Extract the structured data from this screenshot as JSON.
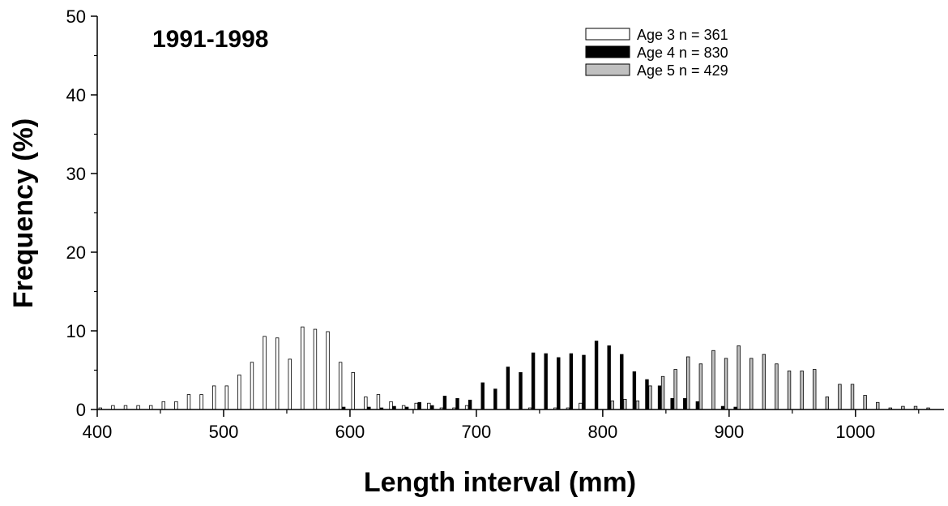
{
  "chart_data": {
    "type": "bar",
    "title": "",
    "annotation": "1991-1998",
    "xlabel": "Length interval (mm)",
    "ylabel": "Frequency (%)",
    "xlim": [
      400,
      1070
    ],
    "ylim": [
      0,
      50
    ],
    "xticks": [
      "400",
      "500",
      "600",
      "700",
      "800",
      "900",
      "1000"
    ],
    "yticks": [
      "0",
      "10",
      "20",
      "30",
      "40",
      "50"
    ],
    "grid": false,
    "legend_position": "top-right",
    "bin_width": 10,
    "categories": [
      410,
      420,
      430,
      440,
      450,
      460,
      470,
      480,
      490,
      500,
      510,
      520,
      530,
      540,
      550,
      560,
      570,
      580,
      590,
      600,
      610,
      620,
      630,
      640,
      650,
      660,
      670,
      680,
      690,
      700,
      710,
      720,
      730,
      740,
      750,
      760,
      770,
      780,
      790,
      800,
      810,
      820,
      830,
      840,
      850,
      860,
      870,
      880,
      890,
      900,
      910,
      920,
      930,
      940,
      950,
      960,
      970,
      980,
      990,
      1000,
      1010,
      1020,
      1030,
      1040,
      1050,
      1060
    ],
    "series": [
      {
        "name": "Age 3 n = 361",
        "color": "#ffffff",
        "values": [
          0.2,
          0.5,
          0.5,
          0.5,
          0.5,
          1.0,
          1.0,
          1.9,
          1.9,
          3.0,
          3.0,
          4.4,
          6.0,
          9.3,
          9.1,
          6.4,
          10.5,
          10.2,
          9.9,
          6.0,
          4.7,
          1.6,
          1.9,
          1.0,
          0.5,
          0.8,
          0.8,
          0.2,
          0.2,
          0.5,
          0,
          0,
          0,
          0,
          0.2,
          0,
          0.2,
          0.2,
          0.8,
          0,
          0,
          0,
          0,
          0,
          0,
          0,
          0,
          0,
          0,
          0,
          0,
          0,
          0,
          0,
          0,
          0,
          0,
          0,
          0,
          0,
          0,
          0,
          0,
          0,
          0,
          0
        ]
      },
      {
        "name": "Age 4 n = 830",
        "color": "#000000",
        "values": [
          0,
          0,
          0,
          0,
          0,
          0,
          0,
          0,
          0,
          0,
          0,
          0,
          0,
          0,
          0,
          0,
          0,
          0,
          0,
          0.3,
          0,
          0.3,
          0.2,
          0.4,
          0.3,
          0.9,
          0.5,
          1.7,
          1.4,
          1.2,
          3.4,
          2.6,
          5.4,
          4.7,
          7.2,
          7.1,
          6.6,
          7.1,
          6.9,
          8.7,
          8.1,
          7.0,
          4.8,
          3.8,
          3.0,
          1.4,
          1.4,
          1.0,
          0,
          0.4,
          0.3,
          0,
          0,
          0,
          0,
          0,
          0,
          0,
          0,
          0,
          0,
          0,
          0,
          0,
          0,
          0
        ]
      },
      {
        "name": "Age 5 n = 429",
        "color": "#c0c0c0",
        "values": [
          0,
          0,
          0,
          0,
          0,
          0,
          0,
          0,
          0,
          0,
          0,
          0,
          0,
          0,
          0,
          0,
          0,
          0,
          0,
          0,
          0,
          0,
          0,
          0,
          0,
          0,
          0,
          0,
          0,
          0,
          0,
          0,
          0,
          0,
          0,
          0,
          0,
          0,
          0,
          0,
          1.1,
          1.3,
          1.1,
          3.0,
          4.2,
          5.1,
          6.7,
          5.8,
          7.5,
          6.5,
          8.1,
          6.5,
          7.0,
          5.8,
          4.9,
          4.9,
          5.1,
          1.6,
          3.2,
          3.2,
          1.8,
          0.9,
          0.2,
          0.4,
          0.4,
          0.2
        ]
      }
    ]
  }
}
